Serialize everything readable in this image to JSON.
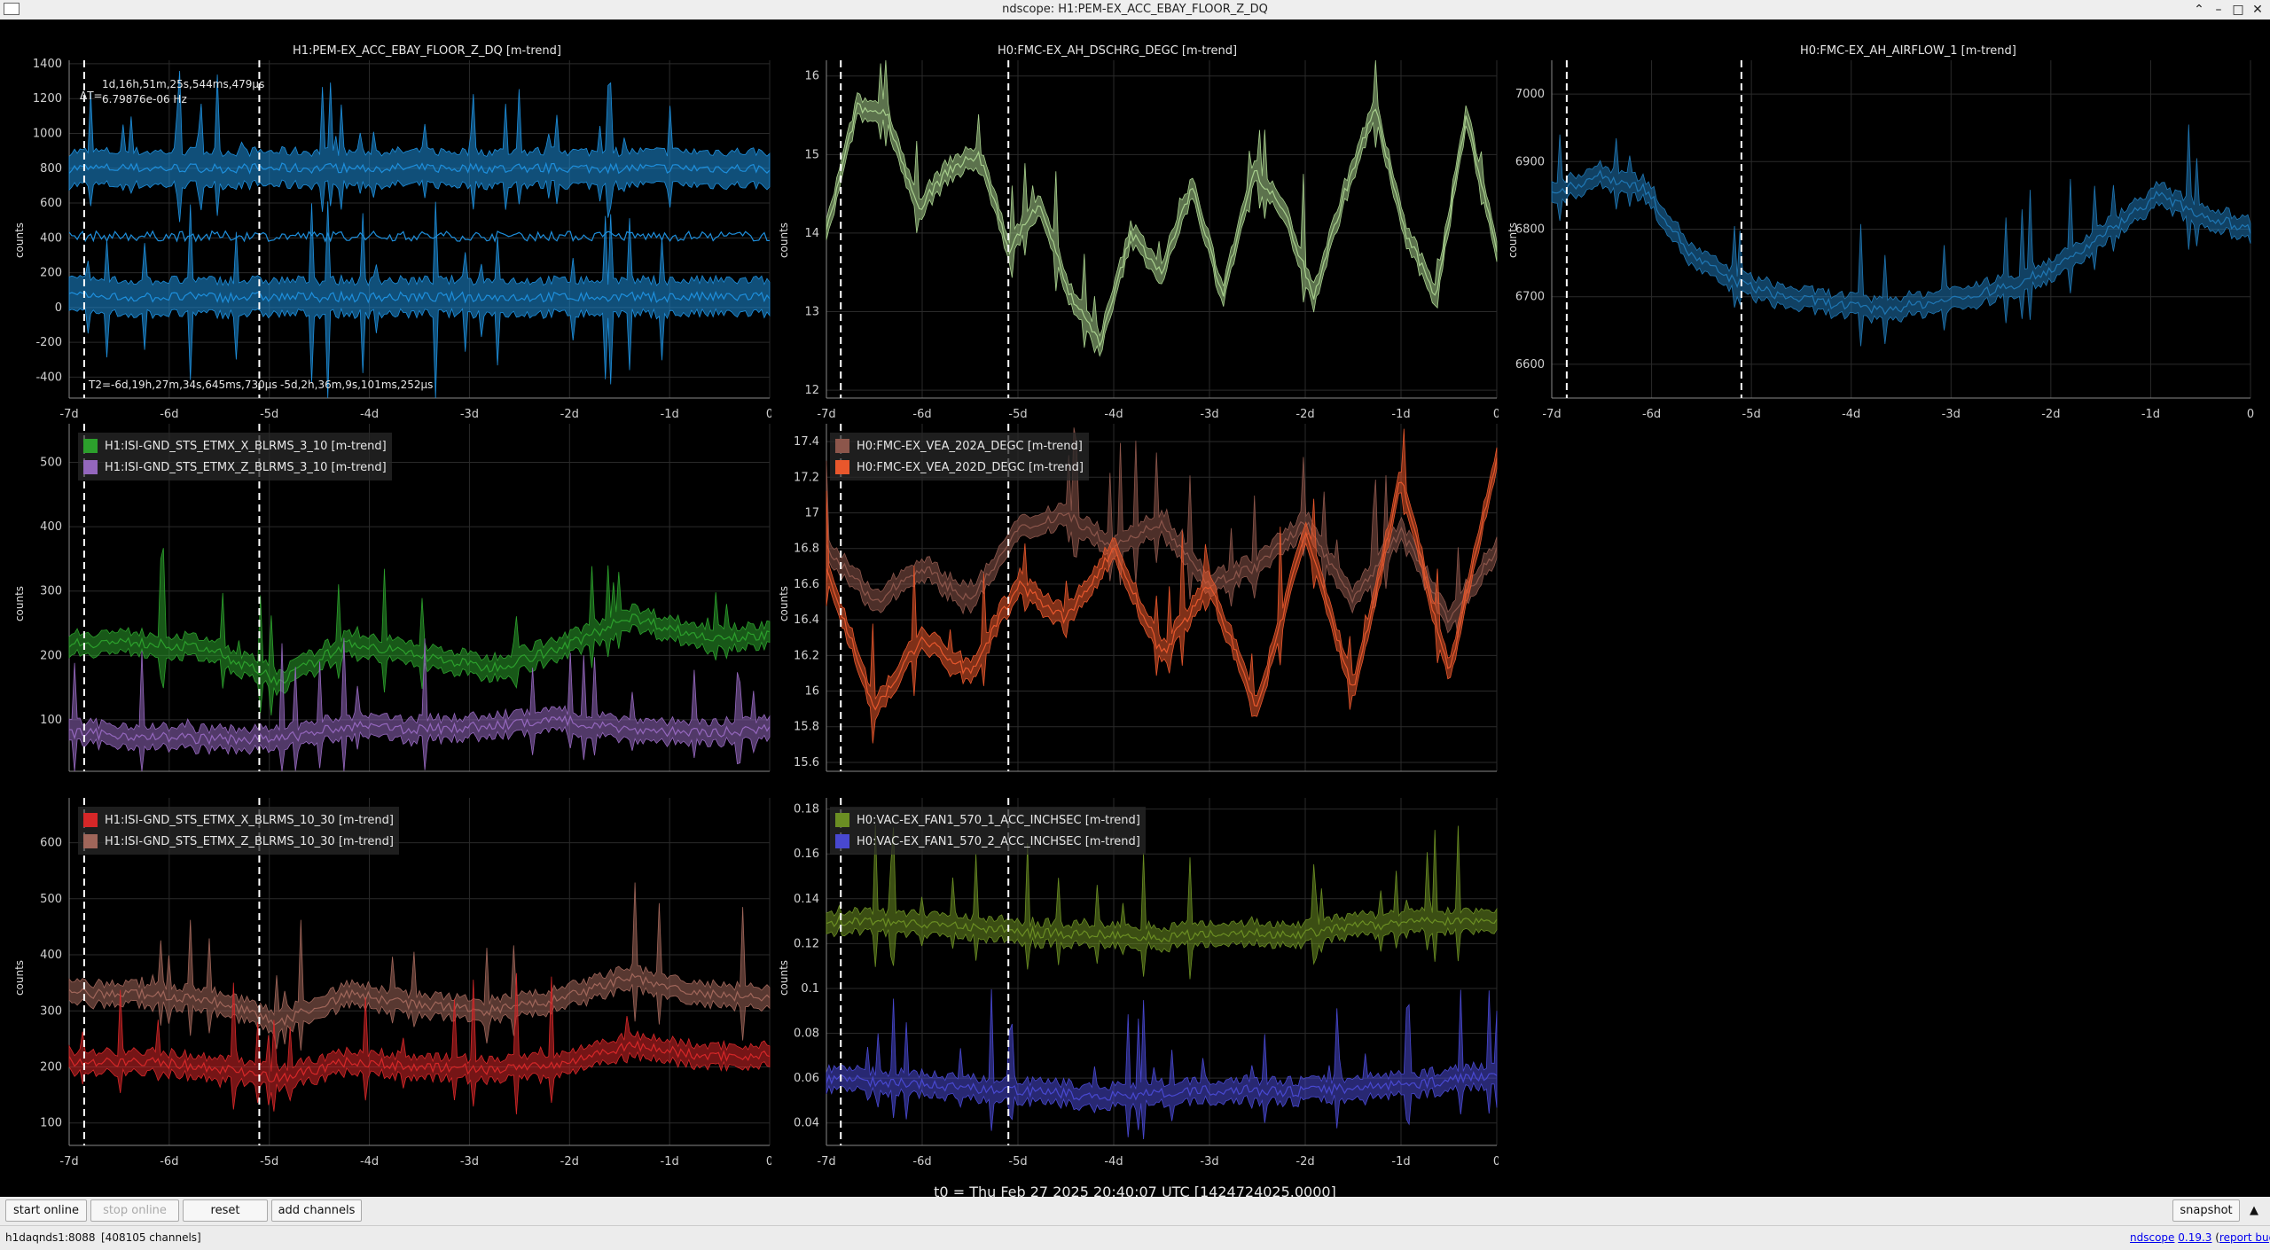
{
  "window": {
    "title": "ndscope: H1:PEM-EX_ACC_EBAY_FLOOR_Z_DQ"
  },
  "x_ticks": [
    "-7d",
    "-6d",
    "-5d",
    "-4d",
    "-3d",
    "-2d",
    "-1d",
    "0"
  ],
  "plots": [
    {
      "id": "p1",
      "title": "H1:PEM-EX_ACC_EBAY_FLOOR_Z_DQ [m-trend]",
      "ylabel": "counts",
      "yticks": [
        "1400",
        "1200",
        "1000",
        "800",
        "600",
        "400",
        "200",
        "0",
        "-200",
        "-400"
      ],
      "ymin": -520,
      "ymax": 1420,
      "series": [
        {
          "name": "H1:PEM-EX_ACC_EBAY_FLOOR_Z_DQ",
          "color": "#1e8fdc",
          "kind": "band-high",
          "center": 800,
          "spread": 160
        },
        {
          "name": "H1:PEM-EX_ACC_EBAY_FLOOR_Z_DQ",
          "color": "#1e8fdc",
          "kind": "flat",
          "center": 410,
          "spread": 0
        },
        {
          "name": "H1:PEM-EX_ACC_EBAY_FLOOR_Z_DQ",
          "color": "#1e8fdc",
          "kind": "band-low",
          "center": 60,
          "spread": 160
        }
      ]
    },
    {
      "id": "p2",
      "title": "H0:FMC-EX_AH_DSCHRG_DEGC [m-trend]",
      "ylabel": "counts",
      "yticks": [
        "16",
        "15",
        "14",
        "13",
        "12"
      ],
      "ymin": 11.9,
      "ymax": 16.2,
      "series": [
        {
          "name": "H0:FMC-EX_AH_DSCHRG_DEGC",
          "color": "#a8d08d",
          "points": [
            14.0,
            15.6,
            15.5,
            14.3,
            14.8,
            15.0,
            13.8,
            14.4,
            13.2,
            12.6,
            14.0,
            13.5,
            14.6,
            13.2,
            14.8,
            14.3,
            13.2,
            14.5,
            15.6,
            14.0,
            13.2,
            15.5,
            13.8
          ]
        }
      ]
    },
    {
      "id": "p3",
      "title": "H0:FMC-EX_AH_AIRFLOW_1 [m-trend]",
      "ylabel": "counts",
      "yticks": [
        "7000",
        "6900",
        "6800",
        "6700",
        "6600"
      ],
      "ymin": 6550,
      "ymax": 7050,
      "series": [
        {
          "name": "H0:FMC-EX_AH_AIRFLOW_1",
          "color": "#1f77b4",
          "points": [
            6850,
            6880,
            6860,
            6760,
            6720,
            6700,
            6690,
            6680,
            6690,
            6700,
            6720,
            6750,
            6800,
            6850,
            6820,
            6800
          ]
        }
      ]
    },
    {
      "id": "p4",
      "title": "",
      "ylabel": "counts",
      "yticks": [
        "500",
        "400",
        "300",
        "200",
        "100"
      ],
      "ymin": 20,
      "ymax": 560,
      "legend": [
        {
          "label": "H1:ISI-GND_STS_ETMX_X_BLRMS_3_10 [m-trend]",
          "color": "#2ca02c"
        },
        {
          "label": "H1:ISI-GND_STS_ETMX_Z_BLRMS_3_10 [m-trend]",
          "color": "#9467bd"
        }
      ],
      "series": [
        {
          "name": "H1:ISI-GND_STS_ETMX_X_BLRMS_3_10",
          "color": "#2ca02c",
          "points": [
            220,
            220,
            210,
            160,
            220,
            200,
            180,
            210,
            260,
            230,
            230
          ]
        },
        {
          "name": "H1:ISI-GND_STS_ETMX_Z_BLRMS_3_10",
          "color": "#9467bd",
          "points": [
            80,
            75,
            70,
            70,
            90,
            85,
            90,
            100,
            85,
            80,
            85
          ]
        }
      ]
    },
    {
      "id": "p5",
      "title": "",
      "ylabel": "counts",
      "yticks": [
        "17.4",
        "17.2",
        "17",
        "16.8",
        "16.6",
        "16.4",
        "16.2",
        "16",
        "15.8",
        "15.6"
      ],
      "ymin": 15.55,
      "ymax": 17.5,
      "legend": [
        {
          "label": "H0:FMC-EX_VEA_202A_DEGC [m-trend]",
          "color": "#8c564b"
        },
        {
          "label": "H0:FMC-EX_VEA_202D_DEGC [m-trend]",
          "color": "#e8572c"
        }
      ],
      "series": [
        {
          "name": "H0:FMC-EX_VEA_202A_DEGC",
          "color": "#8c564b",
          "points": [
            16.8,
            16.5,
            16.7,
            16.5,
            16.9,
            17.0,
            16.8,
            16.95,
            16.6,
            16.7,
            16.95,
            16.5,
            16.9,
            16.4,
            16.8
          ]
        },
        {
          "name": "H0:FMC-EX_VEA_202D_DEGC",
          "color": "#e8572c",
          "points": [
            16.7,
            15.9,
            16.3,
            16.1,
            16.6,
            16.4,
            16.8,
            16.2,
            16.6,
            15.9,
            16.9,
            16.0,
            17.2,
            16.1,
            17.3
          ]
        }
      ]
    },
    {
      "id": "p6",
      "title": "",
      "ylabel": "counts",
      "yticks": [
        "600",
        "500",
        "400",
        "300",
        "200",
        "100"
      ],
      "ymin": 60,
      "ymax": 680,
      "legend": [
        {
          "label": "H1:ISI-GND_STS_ETMX_X_BLRMS_10_30 [m-trend]",
          "color": "#d62728"
        },
        {
          "label": "H1:ISI-GND_STS_ETMX_Z_BLRMS_10_30 [m-trend]",
          "color": "#a0665a"
        }
      ],
      "series": [
        {
          "name": "H1:ISI-GND_STS_ETMX_Z_BLRMS_10_30",
          "color": "#a0665a",
          "points": [
            330,
            330,
            320,
            280,
            330,
            310,
            300,
            320,
            360,
            330,
            320
          ]
        },
        {
          "name": "H1:ISI-GND_STS_ETMX_X_BLRMS_10_30",
          "color": "#d62728",
          "points": [
            210,
            210,
            200,
            180,
            210,
            200,
            195,
            205,
            240,
            220,
            220
          ]
        }
      ]
    },
    {
      "id": "p7",
      "title": "",
      "ylabel": "counts",
      "yticks": [
        "0.18",
        "0.16",
        "0.14",
        "0.12",
        "0.1",
        "0.08",
        "0.06",
        "0.04"
      ],
      "ymin": 0.03,
      "ymax": 0.185,
      "legend": [
        {
          "label": "H0:VAC-EX_FAN1_570_1_ACC_INCHSEC [m-trend]",
          "color": "#6b8e23"
        },
        {
          "label": "H0:VAC-EX_FAN1_570_2_ACC_INCHSEC [m-trend]",
          "color": "#4848d0"
        }
      ],
      "series": [
        {
          "name": "H0:VAC-EX_FAN1_570_1_ACC_INCHSEC",
          "color": "#6b8e23",
          "points": [
            0.13,
            0.13,
            0.128,
            0.125,
            0.124,
            0.123,
            0.125,
            0.124,
            0.128,
            0.13,
            0.13
          ]
        },
        {
          "name": "H0:VAC-EX_FAN1_570_2_ACC_INCHSEC",
          "color": "#4848d0",
          "points": [
            0.06,
            0.058,
            0.056,
            0.054,
            0.052,
            0.053,
            0.055,
            0.054,
            0.056,
            0.058,
            0.062
          ]
        }
      ]
    }
  ],
  "cursors": {
    "t1": -6.85,
    "t2": -5.1
  },
  "cursor_readout": {
    "dt": "ΔT=",
    "dt_value": "1d,16h,51m,25s,544ms,479µs",
    "freq": "6.79876e-06 Hz",
    "t2": "T2=-6d,19h,27m,34s,645ms,730µs ",
    "t1": "-5d,2h,36m,9s,101ms,252µs"
  },
  "t0": "t0 = Thu Feb 27 2025 20:40:07 UTC [1424724025.0000]",
  "toolbar": {
    "start_online": "start online",
    "stop_online": "stop online",
    "reset": "reset",
    "add_channels": "add channels",
    "snapshot": "snapshot"
  },
  "status": {
    "server": "h1daqnds1:8088",
    "channels": "[408105 channels]",
    "app": "ndscope",
    "version": "0.19.3",
    "report_bug": "report bug"
  }
}
